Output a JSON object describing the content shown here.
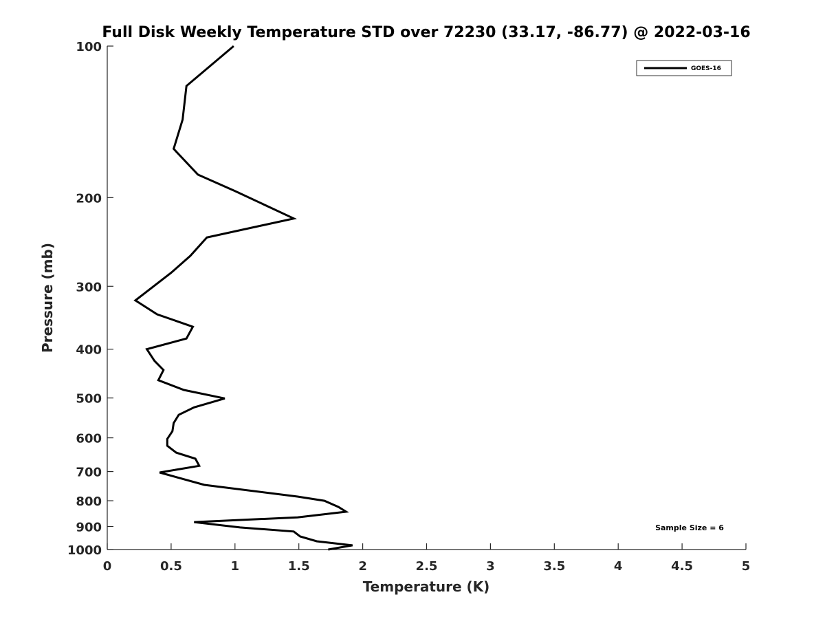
{
  "chart_data": {
    "type": "line",
    "title": "Full Disk Weekly Temperature STD over 72230 (33.17, -86.77) @ 2022-03-16",
    "xlabel": "Temperature (K)",
    "ylabel": "Pressure (mb)",
    "xlim": [
      0,
      5
    ],
    "ylim": [
      100,
      1000
    ],
    "yscale": "log",
    "y_reversed": true,
    "grid": false,
    "xticks": [
      "0",
      "0.5",
      "1",
      "1.5",
      "2",
      "2.5",
      "3",
      "3.5",
      "4",
      "4.5",
      "5"
    ],
    "xtick_values": [
      0,
      0.5,
      1,
      1.5,
      2,
      2.5,
      3,
      3.5,
      4,
      4.5,
      5
    ],
    "yticks": [
      "100",
      "200",
      "300",
      "400",
      "500",
      "600",
      "700",
      "800",
      "900",
      "1000"
    ],
    "ytick_values": [
      100,
      200,
      300,
      400,
      500,
      600,
      700,
      800,
      900,
      1000
    ],
    "legend": {
      "placement": "top-right",
      "entries": [
        "GOES-16"
      ]
    },
    "annotation": "Sample Size = 6",
    "series": [
      {
        "name": "GOES-16",
        "color": "#000000",
        "temperature": [
          0.99,
          0.62,
          0.59,
          0.52,
          0.71,
          1.0,
          1.46,
          0.78,
          0.65,
          0.5,
          0.22,
          0.39,
          0.67,
          0.62,
          0.31,
          0.37,
          0.44,
          0.4,
          0.6,
          0.92,
          0.68,
          0.56,
          0.52,
          0.51,
          0.47,
          0.47,
          0.54,
          0.69,
          0.72,
          0.41,
          0.76,
          1.49,
          1.7,
          1.81,
          1.87,
          1.49,
          0.68,
          1.04,
          1.46,
          1.51,
          1.64,
          1.92,
          1.73
        ],
        "pressure": [
          100,
          120,
          140,
          160,
          180,
          194,
          220,
          240,
          261,
          282,
          320,
          341,
          361,
          381,
          400,
          422,
          440,
          461,
          482,
          501,
          522,
          540,
          561,
          582,
          603,
          622,
          642,
          660,
          682,
          703,
          744,
          785,
          800,
          823,
          841,
          863,
          882,
          904,
          921,
          942,
          963,
          981,
          1000
        ]
      }
    ]
  }
}
